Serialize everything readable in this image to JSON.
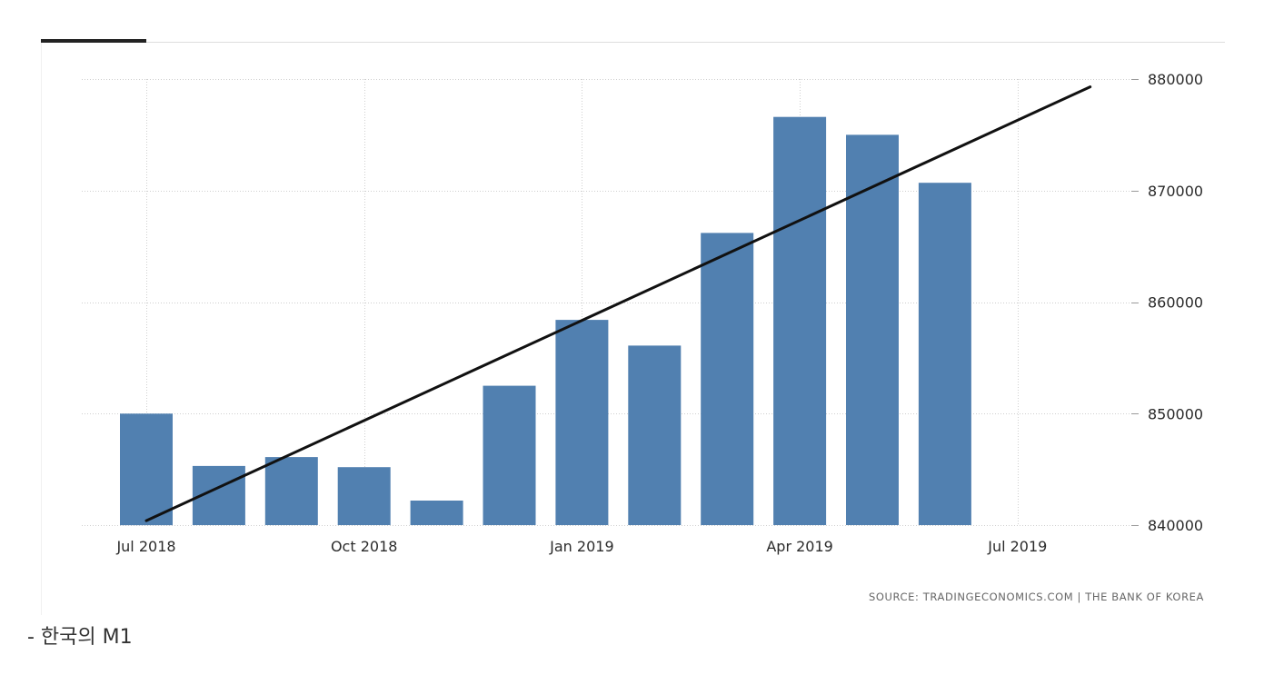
{
  "chart_data": {
    "type": "bar",
    "x": [
      "2018-07",
      "2018-08",
      "2018-09",
      "2018-10",
      "2018-11",
      "2018-12",
      "2019-01",
      "2019-02",
      "2019-03",
      "2019-04",
      "2019-05",
      "2019-06"
    ],
    "values": [
      850000,
      845300,
      846100,
      845200,
      842200,
      852500,
      858400,
      856100,
      866200,
      876600,
      875000,
      870700
    ],
    "trend": {
      "from": {
        "x": "2018-07",
        "y": 840400
      },
      "to": {
        "x": "2019-08",
        "y": 879300
      }
    },
    "x_ticks": [
      {
        "x": "2018-07",
        "label": "Jul 2018"
      },
      {
        "x": "2018-10",
        "label": "Oct 2018"
      },
      {
        "x": "2019-01",
        "label": "Jan 2019"
      },
      {
        "x": "2019-04",
        "label": "Apr 2019"
      },
      {
        "x": "2019-07",
        "label": "Jul 2019"
      }
    ],
    "y_ticks": [
      {
        "value": 840000,
        "label": "840000"
      },
      {
        "value": 850000,
        "label": "850000"
      },
      {
        "value": 860000,
        "label": "860000"
      },
      {
        "value": 870000,
        "label": "870000"
      },
      {
        "value": 880000,
        "label": "880000"
      }
    ],
    "ylim": [
      840000,
      880000
    ],
    "y_axis_side": "right",
    "grid": true,
    "bar_color": "#5180b0",
    "trend_color": "#111111",
    "title": "",
    "xlabel": "",
    "ylabel": ""
  },
  "source": "SOURCE: TRADINGECONOMICS.COM  |  THE BANK OF KOREA",
  "caption": "- 한국의 M1"
}
